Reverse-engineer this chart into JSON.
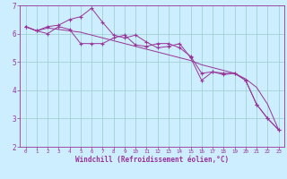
{
  "xlabel": "Windchill (Refroidissement éolien,°C)",
  "x_values": [
    0,
    1,
    2,
    3,
    4,
    5,
    6,
    7,
    8,
    9,
    10,
    11,
    12,
    13,
    14,
    15,
    16,
    17,
    18,
    19,
    20,
    21,
    22,
    23
  ],
  "line1_y": [
    6.25,
    6.1,
    6.0,
    6.25,
    6.15,
    5.65,
    5.65,
    5.65,
    5.85,
    5.95,
    5.6,
    5.55,
    5.65,
    5.65,
    5.5,
    5.2,
    4.6,
    4.65,
    4.6,
    4.6,
    4.35,
    3.5,
    3.0,
    2.6
  ],
  "line2_y": [
    6.25,
    6.1,
    6.25,
    6.3,
    6.5,
    6.6,
    6.9,
    6.4,
    5.95,
    5.85,
    5.95,
    5.7,
    5.5,
    5.55,
    5.65,
    5.15,
    4.35,
    4.65,
    4.55,
    4.6,
    4.35,
    3.5,
    3.0,
    2.6
  ],
  "line3_y": [
    6.25,
    6.1,
    6.2,
    6.15,
    6.1,
    6.05,
    5.95,
    5.85,
    5.75,
    5.65,
    5.55,
    5.45,
    5.35,
    5.25,
    5.15,
    5.05,
    4.9,
    4.8,
    4.7,
    4.6,
    4.4,
    4.1,
    3.5,
    2.6
  ],
  "line_color": "#993399",
  "bg_color": "#cceeff",
  "grid_color": "#99cccc",
  "ylim": [
    2,
    7
  ],
  "xlim": [
    -0.5,
    23.5
  ],
  "yticks": [
    2,
    3,
    4,
    5,
    6,
    7
  ],
  "xticks": [
    0,
    1,
    2,
    3,
    4,
    5,
    6,
    7,
    8,
    9,
    10,
    11,
    12,
    13,
    14,
    15,
    16,
    17,
    18,
    19,
    20,
    21,
    22,
    23
  ],
  "spine_color": "#993399",
  "xlabel_fontsize": 5.5,
  "tick_fontsize_x": 4.2,
  "tick_fontsize_y": 5.5
}
